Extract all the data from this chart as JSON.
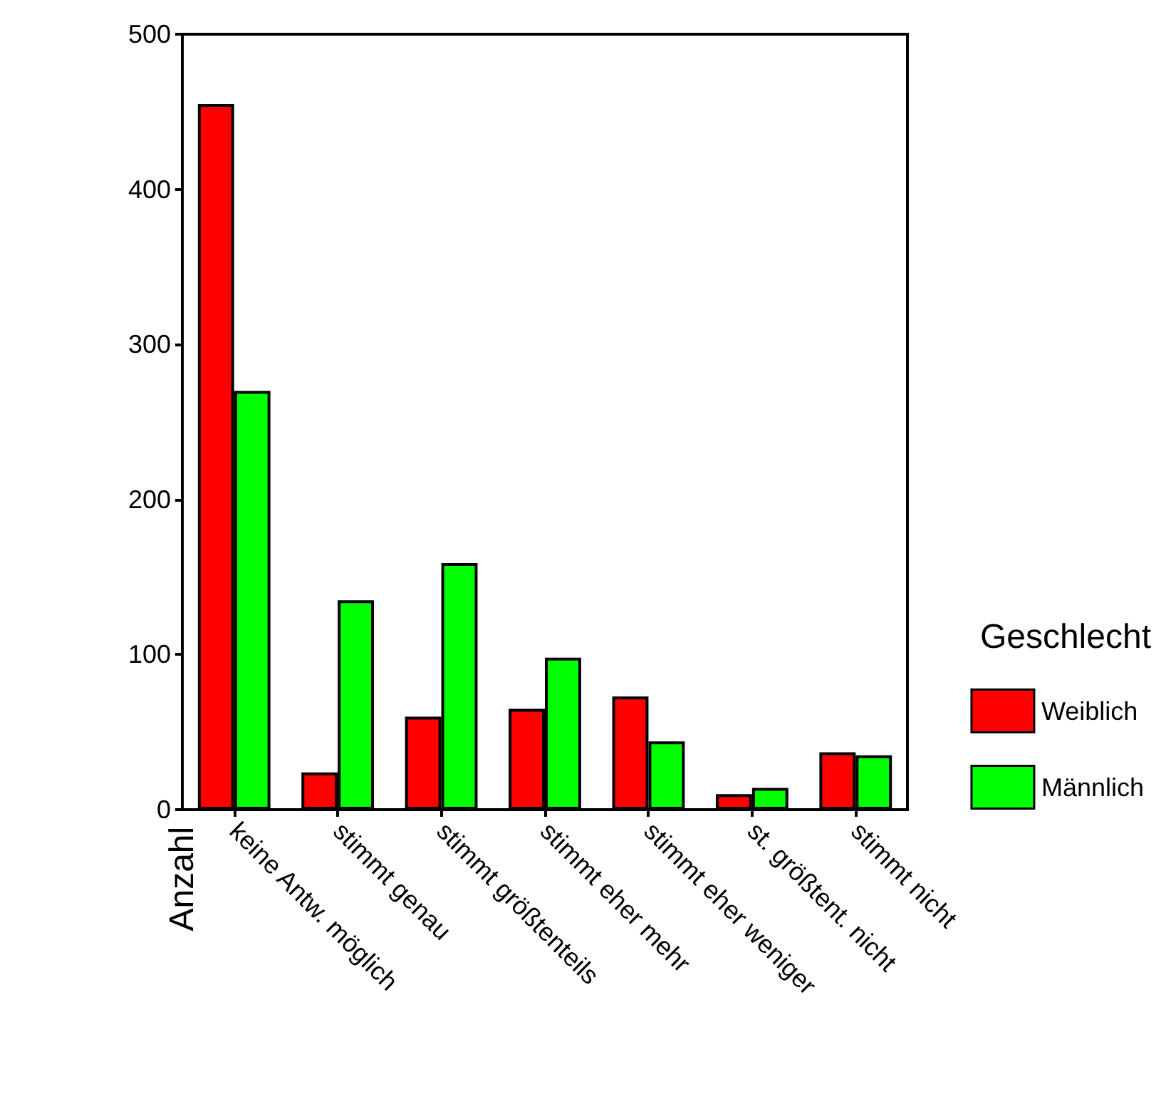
{
  "chart_data": {
    "type": "bar",
    "ylabel": "Anzahl",
    "legend_title": "Geschlecht",
    "categories": [
      "keine Antw. möglich",
      "stimmt genau",
      "stimmt größtenteils",
      "stimmt eher mehr",
      "stimmt eher weniger",
      "st. größtent. nicht",
      "stimmt nicht"
    ],
    "series": [
      {
        "name": "Weiblich",
        "color": "#ff0000",
        "values": [
          455,
          24,
          60,
          65,
          73,
          10,
          37
        ]
      },
      {
        "name": "Männlich",
        "color": "#00ff00",
        "values": [
          270,
          135,
          159,
          98,
          44,
          14,
          35
        ]
      }
    ],
    "ylim": [
      0,
      500
    ],
    "yticks": [
      0,
      100,
      200,
      300,
      400,
      500
    ],
    "grid": false,
    "legend": "right"
  }
}
